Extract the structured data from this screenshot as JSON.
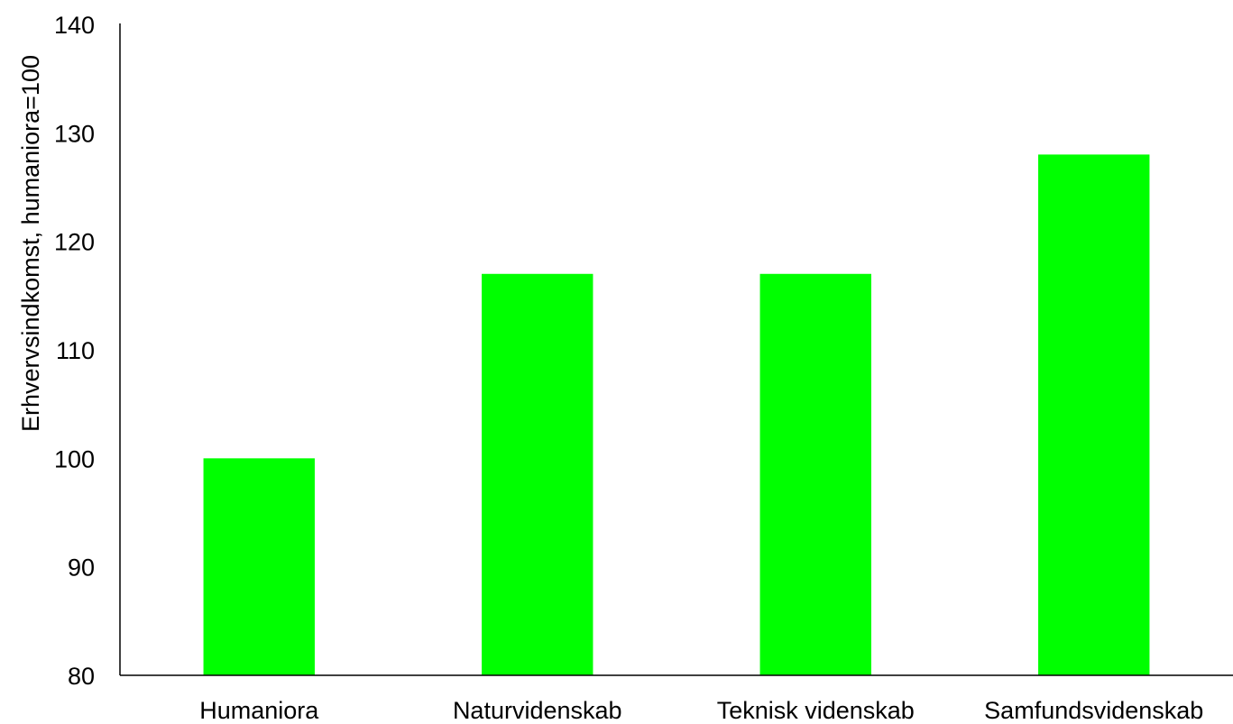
{
  "chart_data": {
    "type": "bar",
    "categories": [
      "Humaniora",
      "Naturvidenskab",
      "Teknisk videnskab",
      "Samfundsvidenskab"
    ],
    "values": [
      100,
      117,
      117,
      128
    ],
    "title": "",
    "xlabel": "",
    "ylabel": "Erhvervsindkomst, humaniora=100",
    "ylim": [
      80,
      140
    ],
    "yticks": [
      80,
      90,
      100,
      110,
      120,
      130,
      140
    ],
    "grid": false,
    "legend": "none",
    "bar_color": "#00FF00"
  }
}
